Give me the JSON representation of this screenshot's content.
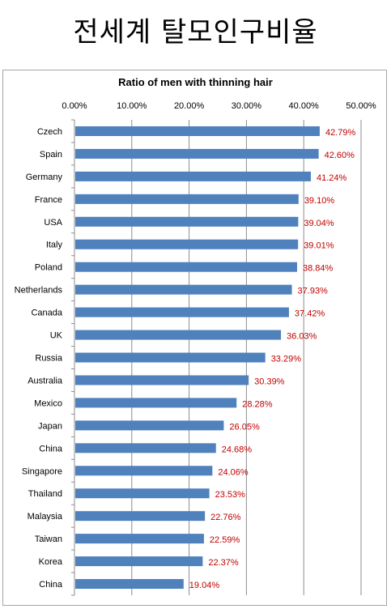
{
  "page": {
    "title": "전세계 탈모인구비율"
  },
  "chart_data": {
    "type": "bar",
    "orientation": "horizontal",
    "title": "Ratio of men with thinning hair",
    "xlabel": "",
    "ylabel": "",
    "xlim": [
      0,
      50
    ],
    "ticks": [
      "0.00%",
      "10.00%",
      "20.00%",
      "30.00%",
      "40.00%",
      "50.00%"
    ],
    "grid": true,
    "bar_color": "#4f81bd",
    "label_color": "#c00000",
    "categories": [
      "Czech",
      "Spain",
      "Germany",
      "France",
      "USA",
      "Italy",
      "Poland",
      "Netherlands",
      "Canada",
      "UK",
      "Russia",
      "Australia",
      "Mexico",
      "Japan",
      "China",
      "Singapore",
      "Thailand",
      "Malaysia",
      "Taiwan",
      "Korea",
      "China"
    ],
    "values": [
      42.79,
      42.6,
      41.24,
      39.1,
      39.04,
      39.01,
      38.84,
      37.93,
      37.42,
      36.03,
      33.29,
      30.39,
      28.28,
      26.05,
      24.68,
      24.06,
      23.53,
      22.76,
      22.59,
      22.37,
      19.04
    ],
    "value_labels": [
      "42.79%",
      "42.60%",
      "41.24%",
      "39.10%",
      "39.04%",
      "39.01%",
      "38.84%",
      "37.93%",
      "37.42%",
      "36.03%",
      "33.29%",
      "30.39%",
      "28.28%",
      "26.05%",
      "24.68%",
      "24.06%",
      "23.53%",
      "22.76%",
      "22.59%",
      "22.37%",
      "19.04%"
    ]
  }
}
